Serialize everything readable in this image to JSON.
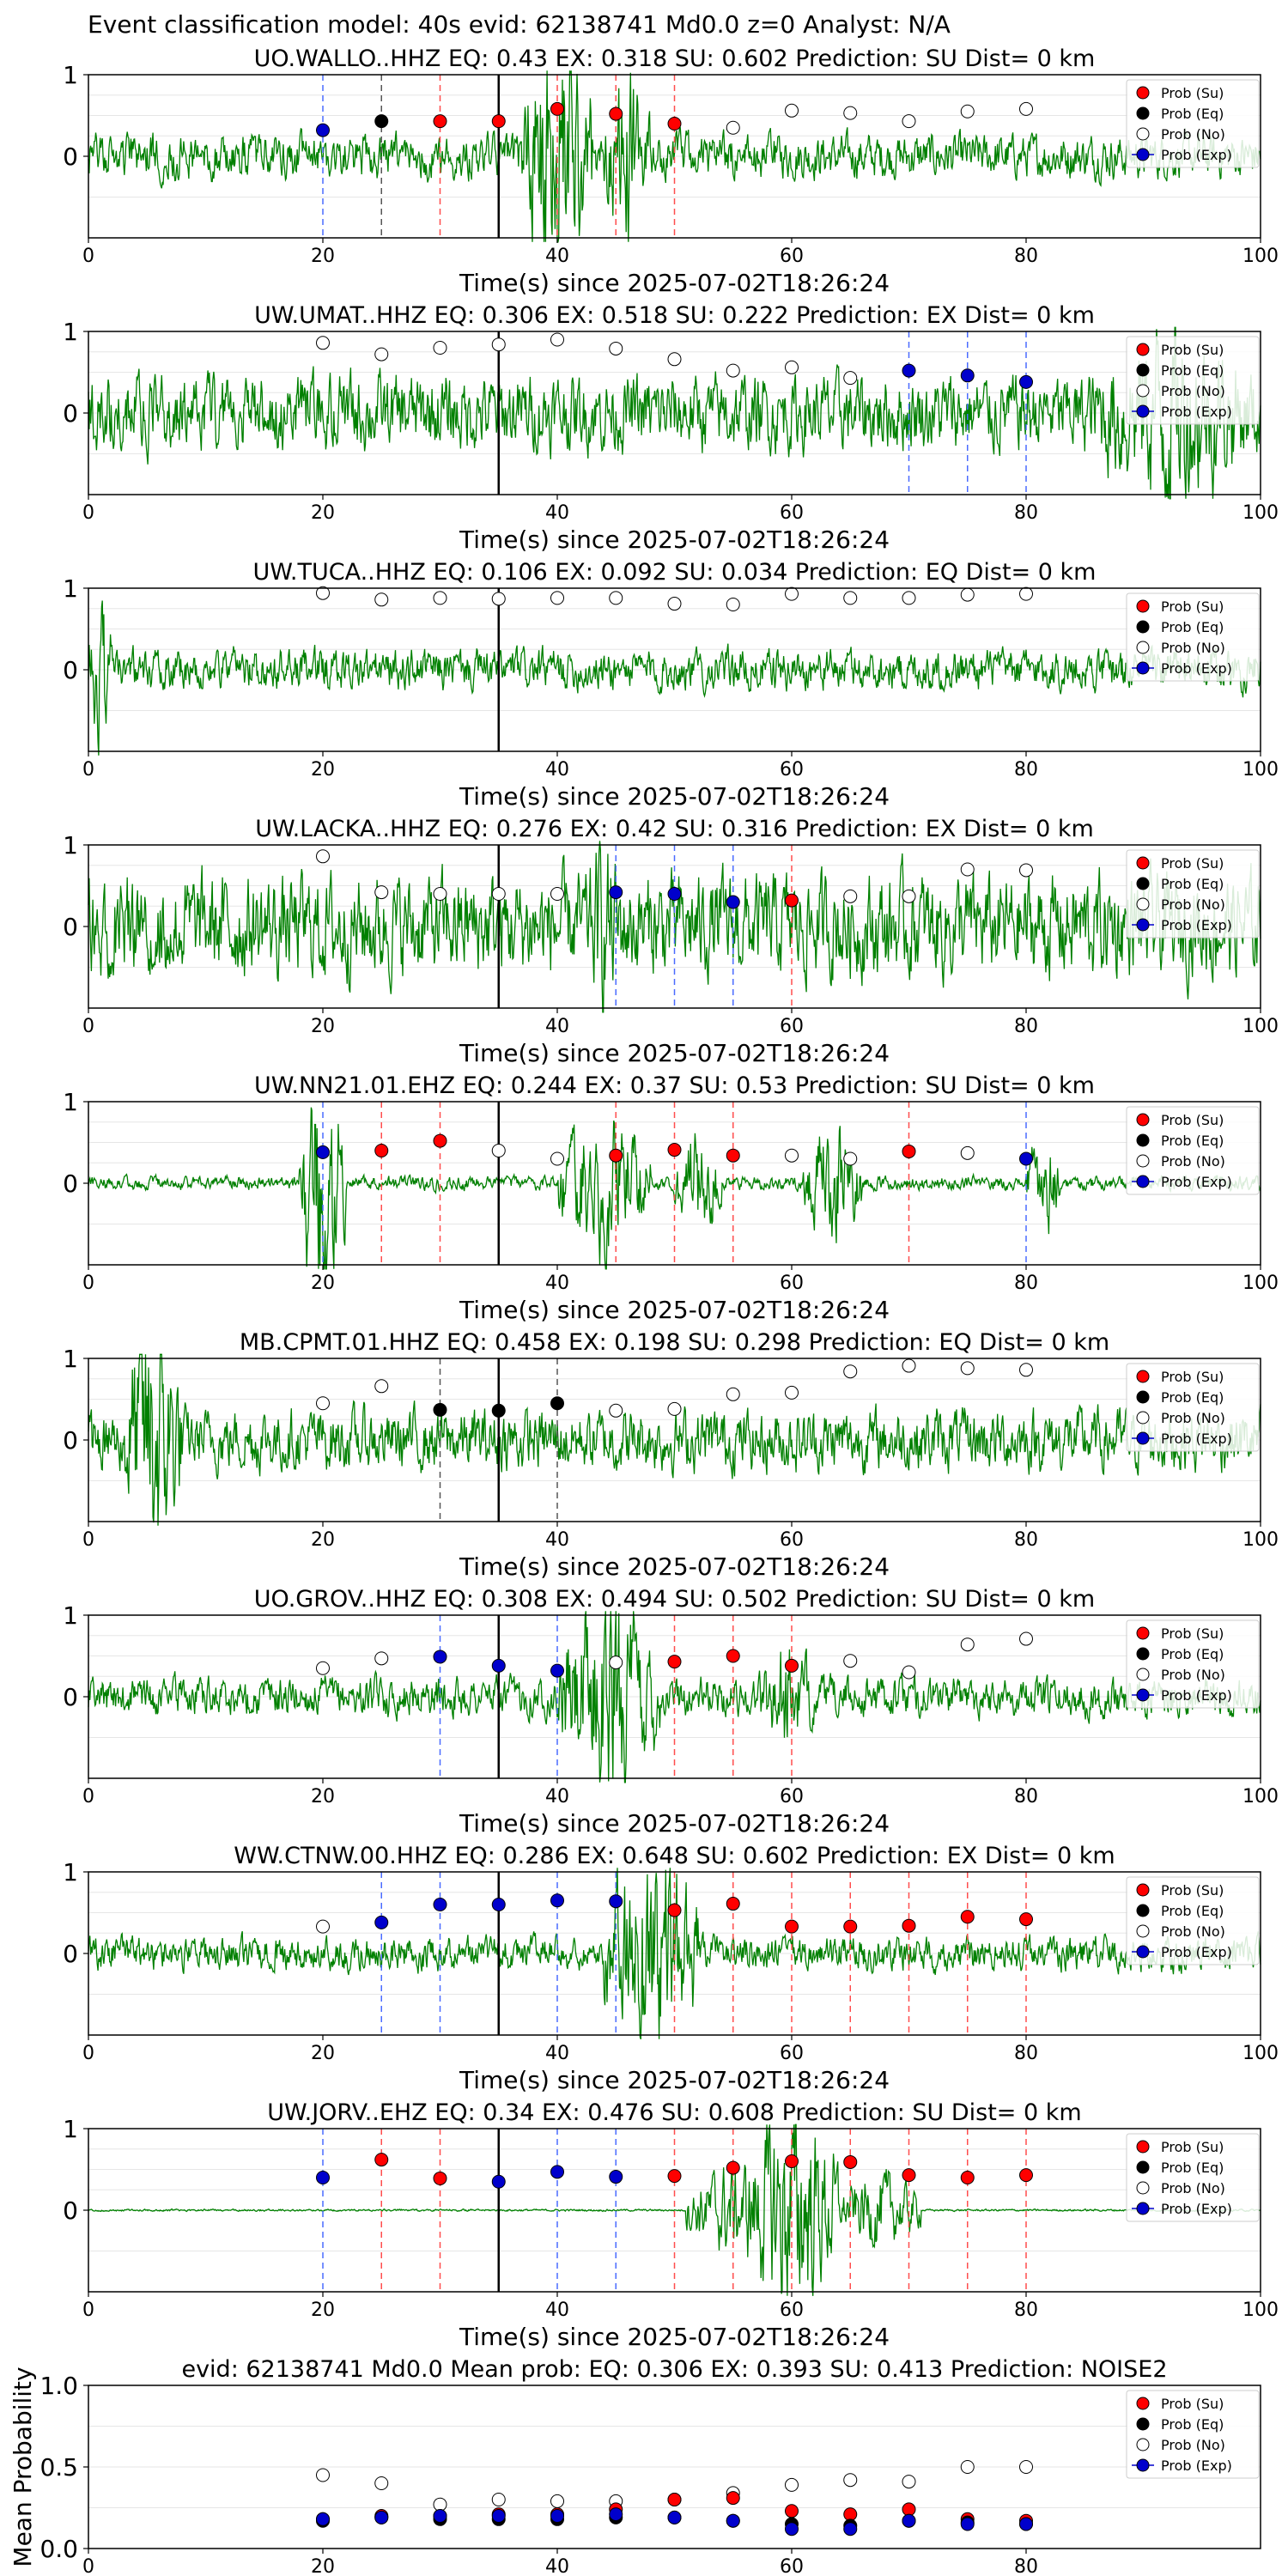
{
  "suptitle": "Event classification model: 40s evid: 62138741 Md0.0 z=0 Analyst: N/A",
  "colors": {
    "waveform": "#008000",
    "su": "#ff0000",
    "eq": "#000000",
    "no": "#ffffff",
    "exp": "#0000cc",
    "axis": "#000000",
    "grid": "#e6e6e6",
    "bluevline": "#4a6bff",
    "redvline": "#ff4d4d",
    "blackvline": "#555555",
    "pick": "#000000"
  },
  "legend_labels": [
    "Prob (Su)",
    "Prob (Eq)",
    "Prob (No)",
    "Prob (Exp)"
  ],
  "chart_data": [
    {
      "type": "scatter",
      "title": "UO.WALLO..HHZ   EQ: 0.43   EX: 0.318   SU: 0.602   Prediction: SU    Dist= 0 km",
      "xlabel": "Time(s) since 2025-07-02T18:26:24",
      "xlim": [
        0,
        100
      ],
      "ylim": [
        -1,
        1
      ],
      "xticks": [
        "0",
        "20",
        "40",
        "60",
        "80",
        "100"
      ],
      "yticks": [
        "1",
        "0"
      ],
      "pick_time": 35,
      "waveform": {
        "amp": 0.32,
        "seed": 1,
        "bursts": [
          [
            37,
            43,
            2.2
          ],
          [
            44,
            48,
            1.4
          ]
        ]
      },
      "x": [
        20,
        25,
        30,
        35,
        40,
        45,
        50,
        55,
        60,
        65,
        70,
        75,
        80
      ],
      "class": [
        "exp",
        "eq",
        "su",
        "su",
        "su",
        "su",
        "su",
        "no",
        "no",
        "no",
        "no",
        "no",
        "no"
      ],
      "y": [
        0.32,
        0.43,
        0.43,
        0.43,
        0.58,
        0.52,
        0.4,
        0.35,
        0.56,
        0.53,
        0.43,
        0.55,
        0.58
      ]
    },
    {
      "type": "scatter",
      "title": "UW.UMAT..HHZ   EQ: 0.306  EX: 0.518  SU: 0.222   Prediction: EX    Dist= 0 km",
      "xlabel": "Time(s) since 2025-07-02T18:26:24",
      "xlim": [
        0,
        100
      ],
      "ylim": [
        -1,
        1
      ],
      "xticks": [
        "0",
        "20",
        "40",
        "60",
        "80",
        "100"
      ],
      "yticks": [
        "1",
        "0"
      ],
      "pick_time": 35,
      "waveform": {
        "amp": 0.55,
        "seed": 2,
        "bursts": [
          [
            85,
            100,
            1.5
          ]
        ]
      },
      "x": [
        20,
        25,
        30,
        35,
        40,
        45,
        50,
        55,
        60,
        65,
        70,
        75,
        80
      ],
      "class": [
        "no",
        "no",
        "no",
        "no",
        "no",
        "no",
        "no",
        "no",
        "no",
        "no",
        "exp",
        "exp",
        "exp"
      ],
      "y": [
        0.86,
        0.72,
        0.8,
        0.84,
        0.9,
        0.79,
        0.66,
        0.52,
        0.56,
        0.43,
        0.52,
        0.46,
        0.38
      ]
    },
    {
      "type": "scatter",
      "title": "UW.TUCA..HHZ   EQ: 0.106  EX: 0.092  SU: 0.034   Prediction: EQ    Dist= 0 km",
      "xlabel": "Time(s) since 2025-07-02T18:26:24",
      "xlim": [
        0,
        100
      ],
      "ylim": [
        -1,
        1
      ],
      "xticks": [
        "0",
        "20",
        "40",
        "60",
        "80",
        "100"
      ],
      "yticks": [
        "1",
        "0"
      ],
      "pick_time": 35,
      "waveform": {
        "amp": 0.3,
        "seed": 3,
        "bursts": [
          [
            0,
            2,
            1.4
          ]
        ]
      },
      "x": [
        20,
        25,
        30,
        35,
        40,
        45,
        50,
        55,
        60,
        65,
        70,
        75,
        80
      ],
      "class": [
        "no",
        "no",
        "no",
        "no",
        "no",
        "no",
        "no",
        "no",
        "no",
        "no",
        "no",
        "no",
        "no"
      ],
      "y": [
        0.94,
        0.86,
        0.88,
        0.87,
        0.88,
        0.88,
        0.81,
        0.8,
        0.93,
        0.88,
        0.88,
        0.92,
        0.93
      ]
    },
    {
      "type": "scatter",
      "title": "UW.LACKA..HHZ   EQ: 0.276  EX: 0.42  SU: 0.316   Prediction: EX    Dist= 0 km",
      "xlabel": "Time(s) since 2025-07-02T18:26:24",
      "xlim": [
        0,
        100
      ],
      "ylim": [
        -1,
        1
      ],
      "xticks": [
        "0",
        "20",
        "40",
        "60",
        "80",
        "100"
      ],
      "yticks": [
        "1",
        "0"
      ],
      "pick_time": 35,
      "waveform": {
        "amp": 0.75,
        "seed": 4,
        "bursts": [
          [
            42,
            46,
            1.4
          ]
        ]
      },
      "x": [
        20,
        25,
        30,
        35,
        40,
        45,
        50,
        55,
        60,
        65,
        70,
        75,
        80
      ],
      "class": [
        "no",
        "no",
        "no",
        "no",
        "no",
        "exp",
        "exp",
        "exp",
        "su",
        "no",
        "no",
        "no",
        "no"
      ],
      "y": [
        0.86,
        0.42,
        0.4,
        0.4,
        0.4,
        0.42,
        0.4,
        0.3,
        0.32,
        0.37,
        0.37,
        0.7,
        0.69
      ]
    },
    {
      "type": "scatter",
      "title": "UW.NN21.01.EHZ   EQ: 0.244  EX: 0.37  SU: 0.53   Prediction: SU    Dist= 0 km",
      "xlabel": "Time(s) since 2025-07-02T18:26:24",
      "xlim": [
        0,
        100
      ],
      "ylim": [
        -1,
        1
      ],
      "xticks": [
        "0",
        "20",
        "40",
        "60",
        "80",
        "100"
      ],
      "yticks": [
        "1",
        "0"
      ],
      "pick_time": 35,
      "waveform": {
        "amp": 0.1,
        "seed": 5,
        "bursts": [
          [
            18,
            22,
            1.9
          ],
          [
            40,
            48,
            1.1
          ],
          [
            50,
            54,
            0.9
          ],
          [
            61,
            66,
            1.0
          ],
          [
            80,
            83,
            0.8
          ]
        ]
      },
      "x": [
        20,
        25,
        30,
        35,
        40,
        45,
        50,
        55,
        60,
        65,
        70,
        75,
        80
      ],
      "class": [
        "exp",
        "su",
        "su",
        "no",
        "no",
        "su",
        "su",
        "su",
        "no",
        "no",
        "su",
        "no",
        "exp"
      ],
      "y": [
        0.38,
        0.4,
        0.52,
        0.4,
        0.3,
        0.34,
        0.41,
        0.34,
        0.34,
        0.3,
        0.39,
        0.37,
        0.3
      ]
    },
    {
      "type": "scatter",
      "title": "MB.CPMT.01.HHZ   EQ: 0.458  EX: 0.198  SU: 0.298   Prediction: EQ    Dist= 0 km",
      "xlabel": "Time(s) since 2025-07-02T18:26:24",
      "xlim": [
        0,
        100
      ],
      "ylim": [
        -1,
        1
      ],
      "xticks": [
        "0",
        "20",
        "40",
        "60",
        "80",
        "100"
      ],
      "yticks": [
        "1",
        "0"
      ],
      "pick_time": 35,
      "waveform": {
        "amp": 0.45,
        "seed": 6,
        "bursts": [
          [
            3,
            8,
            2.3
          ]
        ]
      },
      "x": [
        20,
        25,
        30,
        35,
        40,
        45,
        50,
        55,
        60,
        65,
        70,
        75,
        80
      ],
      "class": [
        "no",
        "no",
        "eq",
        "eq",
        "eq",
        "no",
        "no",
        "no",
        "no",
        "no",
        "no",
        "no",
        "no"
      ],
      "y": [
        0.45,
        0.66,
        0.37,
        0.36,
        0.45,
        0.36,
        0.38,
        0.56,
        0.58,
        0.84,
        0.91,
        0.88,
        0.86
      ]
    },
    {
      "type": "scatter",
      "title": "UO.GROV..HHZ   EQ: 0.308  EX: 0.494  SU: 0.502   Prediction: SU    Dist= 0 km",
      "xlabel": "Time(s) since 2025-07-02T18:26:24",
      "xlim": [
        0,
        100
      ],
      "ylim": [
        -1,
        1
      ],
      "xticks": [
        "0",
        "20",
        "40",
        "60",
        "80",
        "100"
      ],
      "yticks": [
        "1",
        "0"
      ],
      "pick_time": 35,
      "waveform": {
        "amp": 0.28,
        "seed": 7,
        "bursts": [
          [
            40,
            49,
            1.7
          ],
          [
            57,
            62,
            0.9
          ]
        ]
      },
      "x": [
        20,
        25,
        30,
        35,
        40,
        45,
        50,
        55,
        60,
        65,
        70,
        75,
        80
      ],
      "class": [
        "no",
        "no",
        "exp",
        "exp",
        "exp",
        "no",
        "su",
        "su",
        "su",
        "no",
        "no",
        "no",
        "no"
      ],
      "y": [
        0.35,
        0.47,
        0.49,
        0.38,
        0.32,
        0.42,
        0.43,
        0.5,
        0.38,
        0.44,
        0.3,
        0.64,
        0.71
      ]
    },
    {
      "type": "scatter",
      "title": "WW.CTNW.00.HHZ   EQ: 0.286  EX: 0.648  SU: 0.602   Prediction: EX    Dist= 0 km",
      "xlabel": "Time(s) since 2025-07-02T18:26:24",
      "xlim": [
        0,
        100
      ],
      "ylim": [
        -1,
        1
      ],
      "xticks": [
        "0",
        "20",
        "40",
        "60",
        "80",
        "100"
      ],
      "yticks": [
        "1",
        "0"
      ],
      "pick_time": 35,
      "waveform": {
        "amp": 0.25,
        "seed": 8,
        "bursts": [
          [
            44,
            52,
            1.8
          ]
        ]
      },
      "x": [
        20,
        25,
        30,
        35,
        40,
        45,
        50,
        55,
        60,
        65,
        70,
        75,
        80
      ],
      "class": [
        "no",
        "exp",
        "exp",
        "exp",
        "exp",
        "exp",
        "su",
        "su",
        "su",
        "su",
        "su",
        "su",
        "su"
      ],
      "y": [
        0.33,
        0.38,
        0.6,
        0.6,
        0.65,
        0.64,
        0.53,
        0.61,
        0.33,
        0.33,
        0.34,
        0.45,
        0.42
      ]
    },
    {
      "type": "scatter",
      "title": "UW.JORV..EHZ   EQ: 0.34  EX: 0.476  SU: 0.608   Prediction: SU    Dist= 0 km",
      "xlabel": "Time(s) since 2025-07-02T18:26:24",
      "xlim": [
        0,
        100
      ],
      "ylim": [
        -1,
        1
      ],
      "xticks": [
        "0",
        "20",
        "40",
        "60",
        "80",
        "100"
      ],
      "yticks": [
        "1",
        "0"
      ],
      "pick_time": 35,
      "waveform": {
        "amp": 0.015,
        "seed": 9,
        "bursts": [
          [
            51,
            58,
            0.7
          ],
          [
            56,
            64,
            1.8
          ],
          [
            64,
            71,
            0.6
          ]
        ]
      },
      "x": [
        20,
        25,
        30,
        35,
        40,
        45,
        50,
        55,
        60,
        65,
        70,
        75,
        80
      ],
      "class": [
        "exp",
        "su",
        "su",
        "exp",
        "exp",
        "exp",
        "su",
        "su",
        "su",
        "su",
        "su",
        "su",
        "su"
      ],
      "y": [
        0.4,
        0.62,
        0.39,
        0.35,
        0.47,
        0.41,
        0.42,
        0.52,
        0.6,
        0.59,
        0.43,
        0.4,
        0.43
      ]
    },
    {
      "type": "scatter",
      "title": "evid: 62138741  Md0.0   Mean prob:    EQ: 0.306  EX: 0.393  SU: 0.413   Prediction: NOISE2",
      "xlabel": "",
      "ylabel": "Mean Probability",
      "xlim": [
        0,
        100
      ],
      "ylim": [
        0,
        1
      ],
      "xticks": [
        "0",
        "20",
        "40",
        "60",
        "80"
      ],
      "yticks": [
        "1.0",
        "0.5",
        "0.0"
      ],
      "x": [
        20,
        25,
        30,
        35,
        40,
        45,
        50,
        55,
        60,
        65,
        70,
        75,
        80
      ],
      "series": [
        {
          "class": "no",
          "values": [
            0.45,
            0.4,
            0.27,
            0.3,
            0.29,
            0.29,
            0.3,
            0.34,
            0.39,
            0.42,
            0.41,
            0.5,
            0.5
          ]
        },
        {
          "class": "su",
          "values": [
            0.18,
            0.2,
            0.2,
            0.21,
            0.21,
            0.24,
            0.3,
            0.31,
            0.23,
            0.21,
            0.24,
            0.18,
            0.17
          ]
        },
        {
          "class": "eq",
          "values": [
            0.17,
            0.19,
            0.18,
            0.18,
            0.18,
            0.19,
            0.19,
            0.17,
            0.15,
            0.14,
            0.17,
            0.16,
            0.15
          ]
        },
        {
          "class": "exp",
          "values": [
            0.18,
            0.19,
            0.2,
            0.2,
            0.2,
            0.21,
            0.19,
            0.17,
            0.12,
            0.12,
            0.17,
            0.15,
            0.15
          ]
        }
      ]
    }
  ]
}
